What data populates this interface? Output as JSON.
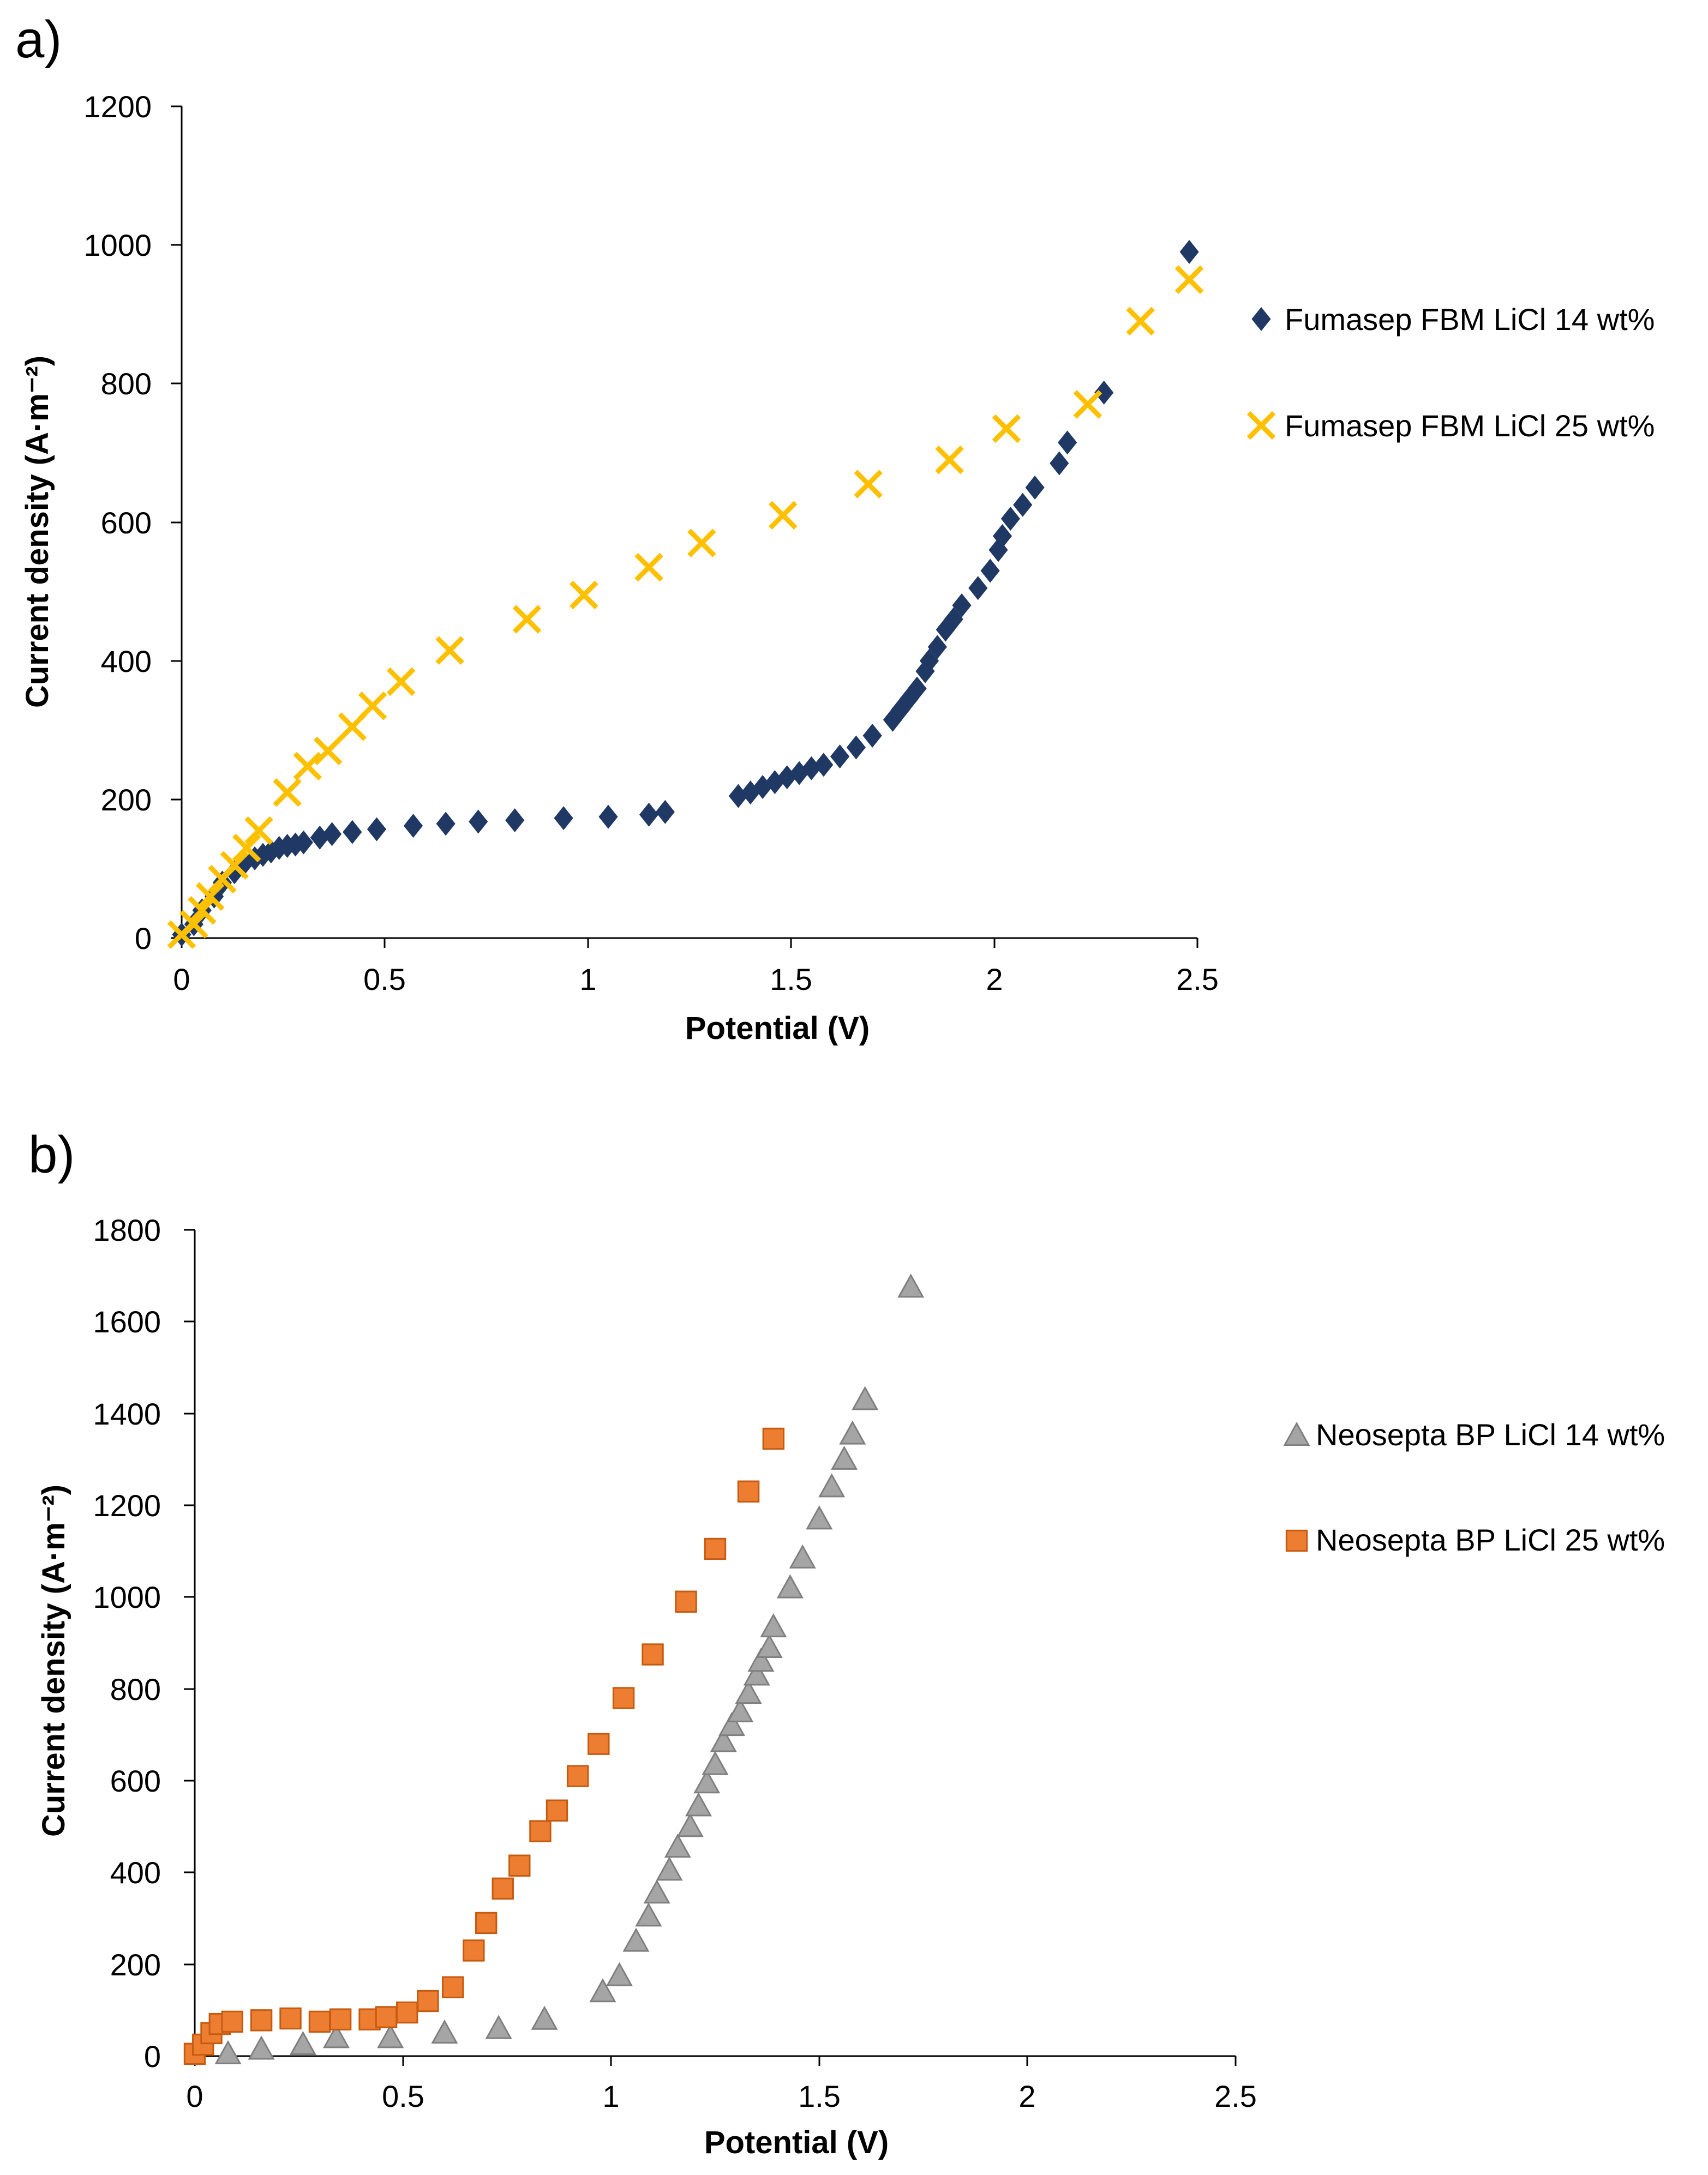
{
  "chart_data": [
    {
      "panel": "a)",
      "type": "scatter",
      "xlabel": "Potential (V)",
      "ylabel": "Current density (A·m⁻²)",
      "xlim": [
        0,
        2.5
      ],
      "ylim": [
        0,
        1200
      ],
      "xticks": [
        0,
        0.5,
        1,
        1.5,
        2,
        2.5
      ],
      "xtick_labels": [
        "0",
        "0.5",
        "1",
        "1.5",
        "2",
        "2.5"
      ],
      "yticks": [
        0,
        200,
        400,
        600,
        800,
        1000,
        1200
      ],
      "ytick_labels": [
        "0",
        "200",
        "400",
        "600",
        "800",
        "1000",
        "1200"
      ],
      "grid": false,
      "legend_position": "right",
      "series": [
        {
          "name": "Fumasep FBM LiCl 14 wt%",
          "marker": "diamond",
          "color": "#1f3864",
          "x": [
            0.0,
            0.03,
            0.05,
            0.08,
            0.1,
            0.13,
            0.15,
            0.18,
            0.2,
            0.22,
            0.24,
            0.26,
            0.28,
            0.3,
            0.34,
            0.37,
            0.42,
            0.48,
            0.57,
            0.65,
            0.73,
            0.82,
            0.94,
            1.05,
            1.15,
            1.19,
            1.37,
            1.4,
            1.43,
            1.46,
            1.49,
            1.52,
            1.55,
            1.58,
            1.62,
            1.66,
            1.7,
            1.75,
            1.77,
            1.79,
            1.81,
            1.83,
            1.84,
            1.86,
            1.88,
            1.9,
            1.92,
            1.96,
            1.99,
            2.01,
            2.02,
            2.04,
            2.07,
            2.1,
            2.16,
            2.18,
            2.27,
            2.48
          ],
          "y": [
            5,
            20,
            40,
            60,
            80,
            95,
            105,
            115,
            120,
            125,
            130,
            133,
            135,
            138,
            145,
            150,
            153,
            157,
            162,
            165,
            168,
            170,
            173,
            175,
            178,
            182,
            205,
            210,
            218,
            225,
            232,
            238,
            245,
            250,
            262,
            275,
            292,
            315,
            330,
            345,
            360,
            385,
            400,
            420,
            445,
            460,
            480,
            505,
            530,
            560,
            580,
            605,
            625,
            650,
            685,
            715,
            787,
            990
          ]
        },
        {
          "name": "Fumasep FBM LiCl 25 wt%",
          "marker": "x",
          "color": "#ffc000",
          "x": [
            0.0,
            0.03,
            0.05,
            0.07,
            0.1,
            0.13,
            0.16,
            0.19,
            0.26,
            0.31,
            0.36,
            0.42,
            0.47,
            0.54,
            0.66,
            0.85,
            0.99,
            1.15,
            1.28,
            1.48,
            1.69,
            1.89,
            2.03,
            2.23,
            2.36,
            2.48
          ],
          "y": [
            5,
            20,
            40,
            60,
            85,
            105,
            130,
            155,
            210,
            248,
            270,
            305,
            335,
            370,
            415,
            460,
            495,
            535,
            570,
            610,
            655,
            690,
            735,
            770,
            890,
            950
          ]
        }
      ]
    },
    {
      "panel": "b)",
      "type": "scatter",
      "xlabel": "Potential (V)",
      "ylabel": "Current density (A·m⁻²)",
      "xlim": [
        0,
        2.5
      ],
      "ylim": [
        0,
        1800
      ],
      "xticks": [
        0,
        0.5,
        1,
        1.5,
        2,
        2.5
      ],
      "xtick_labels": [
        "0",
        "0.5",
        "1",
        "1.5",
        "2",
        "2.5"
      ],
      "yticks": [
        0,
        200,
        400,
        600,
        800,
        1000,
        1200,
        1400,
        1600,
        1800
      ],
      "ytick_labels": [
        "0",
        "200",
        "400",
        "600",
        "800",
        "1000",
        "1200",
        "1400",
        "1600",
        "1800"
      ],
      "grid": false,
      "legend_position": "right",
      "series": [
        {
          "name": "Neosepta BP LiCl 14 wt%",
          "marker": "triangle",
          "color": "#a5a5a5",
          "x": [
            0.08,
            0.16,
            0.26,
            0.34,
            0.47,
            0.6,
            0.73,
            0.84,
            0.98,
            1.02,
            1.06,
            1.09,
            1.11,
            1.14,
            1.16,
            1.19,
            1.21,
            1.23,
            1.25,
            1.27,
            1.29,
            1.31,
            1.33,
            1.35,
            1.36,
            1.38,
            1.39,
            1.43,
            1.46,
            1.5,
            1.53,
            1.56,
            1.58,
            1.61,
            1.72
          ],
          "y": [
            5,
            15,
            25,
            40,
            40,
            50,
            60,
            80,
            140,
            175,
            250,
            305,
            355,
            405,
            455,
            500,
            545,
            595,
            635,
            685,
            720,
            750,
            790,
            830,
            860,
            890,
            935,
            1020,
            1085,
            1170,
            1240,
            1300,
            1355,
            1430,
            1675
          ]
        },
        {
          "name": "Neosepta BP LiCl 25 wt%",
          "marker": "square",
          "color": "#ed7d31",
          "x": [
            0.0,
            0.02,
            0.04,
            0.06,
            0.09,
            0.16,
            0.23,
            0.3,
            0.35,
            0.42,
            0.46,
            0.51,
            0.56,
            0.62,
            0.67,
            0.7,
            0.74,
            0.78,
            0.83,
            0.87,
            0.92,
            0.97,
            1.03,
            1.1,
            1.18,
            1.25,
            1.33,
            1.39
          ],
          "y": [
            5,
            25,
            50,
            70,
            75,
            78,
            82,
            75,
            80,
            80,
            85,
            95,
            120,
            150,
            230,
            290,
            365,
            415,
            490,
            535,
            610,
            680,
            780,
            875,
            990,
            1105,
            1230,
            1345
          ]
        }
      ]
    }
  ]
}
